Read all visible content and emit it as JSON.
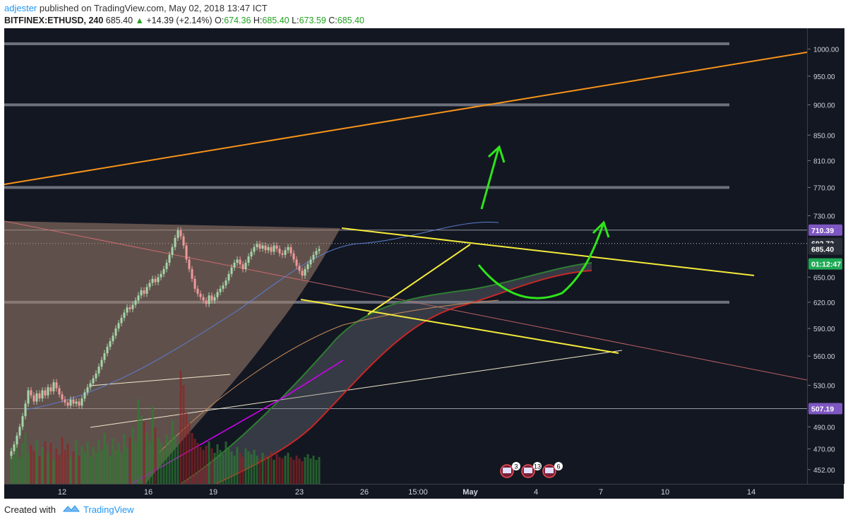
{
  "header": {
    "user": "adjester",
    "published": " published on TradingView.com, May 02, 2018 13:47 ICT",
    "symbol": "BITFINEX:ETHUSD, 240",
    "last": "685.40",
    "change": "+14.39 (+2.14%)",
    "o_label": "O:",
    "o": "674.36",
    "h_label": "H:",
    "h": "685.40",
    "l_label": "L:",
    "l": "673.59",
    "c_label": "C:",
    "c": "685.40"
  },
  "footer": {
    "created": "Created with",
    "brand": "TradingView"
  },
  "colors": {
    "background": "#131722",
    "up": "#a5d6a7",
    "down": "#ef9a9a",
    "trend_yellow": "#f5eb3b",
    "orange": "#f7931a",
    "arrow_green": "#2ee51a",
    "label_purple": "#7e57c2",
    "label_green": "#1faa55"
  },
  "chart_data": {
    "type": "candlestick",
    "y_scale": "log",
    "ylim": [
      440,
      1040
    ],
    "y_ticks": [
      "1000.00",
      "950.00",
      "900.00",
      "850.00",
      "810.00",
      "770.00",
      "730.00",
      "650.00",
      "620.00",
      "590.00",
      "560.00",
      "530.00",
      "490.00",
      "470.00",
      "452.00"
    ],
    "x_ticks": [
      "12",
      "16",
      "19",
      "23",
      "26",
      "15:00",
      "May",
      "4",
      "7",
      "10",
      "14"
    ],
    "price_labels": [
      {
        "text": "710.39",
        "value": 710.39,
        "color": "#7e57c2"
      },
      {
        "text": "692.72",
        "value": 692.72,
        "color": "#2a2e39"
      },
      {
        "text": "685.40",
        "value": 685.4,
        "color": "#2a2e39"
      },
      {
        "text": "01:12:47",
        "value": 666.5,
        "color": "#1faa55"
      },
      {
        "text": "507.19",
        "value": 507.19,
        "color": "#7e57c2"
      }
    ],
    "horizontal_levels": [
      1010,
      900,
      770,
      620
    ],
    "candles": {
      "x_start": 10,
      "x_step": 4,
      "close": [
        468,
        474,
        482,
        490,
        500,
        512,
        525,
        520,
        514,
        522,
        517,
        525,
        520,
        528,
        524,
        533,
        527,
        521,
        516,
        513,
        510,
        516,
        512,
        514,
        510,
        517,
        523,
        528,
        532,
        537,
        542,
        549,
        556,
        563,
        570,
        576,
        582,
        590,
        596,
        602,
        608,
        614,
        612,
        617,
        622,
        628,
        634,
        630,
        638,
        643,
        648,
        644,
        650,
        654,
        660,
        668,
        678,
        688,
        700,
        710,
        702,
        690,
        672,
        660,
        648,
        636,
        630,
        626,
        622,
        618,
        628,
        622,
        626,
        632,
        636,
        640,
        646,
        654,
        662,
        668,
        672,
        666,
        660,
        668,
        676,
        682,
        688,
        692,
        686,
        690,
        684,
        688,
        682,
        690,
        686,
        680,
        678,
        684,
        688,
        680,
        672,
        664,
        658,
        652,
        660,
        666,
        672,
        678,
        683,
        685.4
      ]
    },
    "annotations": [
      {
        "type": "text",
        "text": "3"
      },
      {
        "type": "text",
        "text": "13"
      },
      {
        "type": "text",
        "text": "6"
      }
    ]
  }
}
